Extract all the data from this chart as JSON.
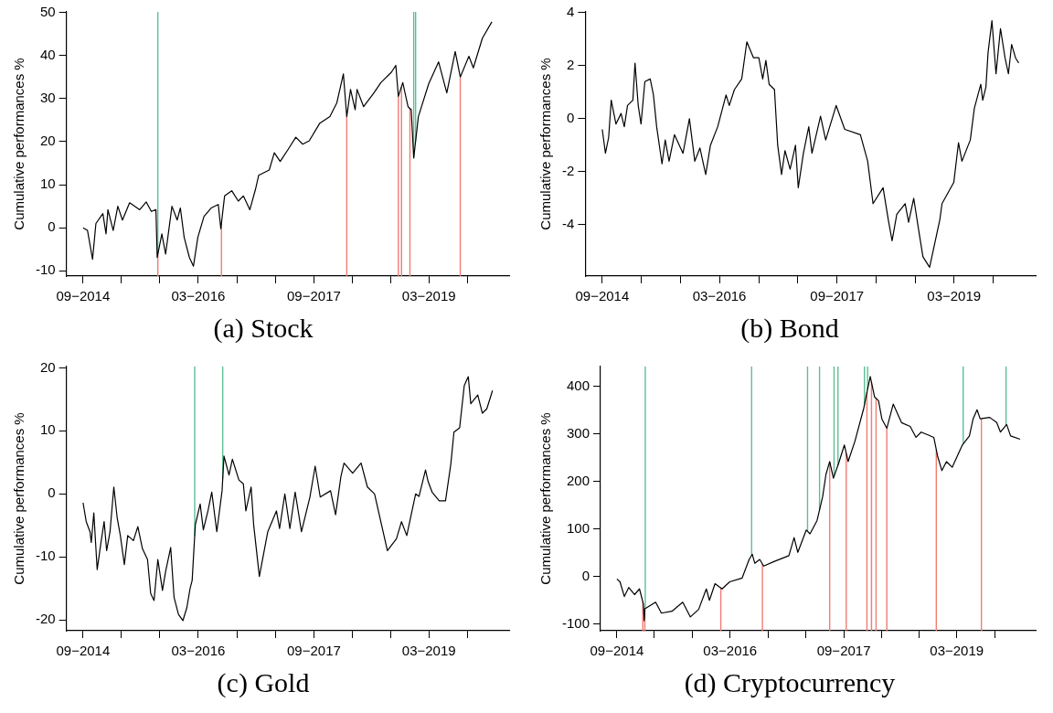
{
  "chart_data": [
    {
      "type": "line",
      "title": "(a) Stock",
      "ylabel": "Cumulative performances %",
      "marker": "none",
      "xlim": [
        "2014-06-14",
        "2020-03-16"
      ],
      "ylim": [
        -11.2,
        50.1
      ],
      "xticks": [
        {
          "value": "2014-09",
          "label": "09−2014"
        },
        {
          "value": "2015-03",
          "label": null
        },
        {
          "value": "2015-09",
          "label": null
        },
        {
          "value": "2016-03",
          "label": "03−2016"
        },
        {
          "value": "2016-09",
          "label": null
        },
        {
          "value": "2017-03",
          "label": null
        },
        {
          "value": "2017-09",
          "label": "09−2017"
        },
        {
          "value": "2018-03",
          "label": null
        },
        {
          "value": "2018-09",
          "label": null
        },
        {
          "value": "2019-03",
          "label": "03−2019"
        },
        {
          "value": "2019-09",
          "label": null
        }
      ],
      "yticks": [
        -10,
        0,
        10,
        20,
        30,
        40,
        50
      ],
      "x": [
        "2014-09-01",
        "2014-09-22",
        "2014-10-16",
        "2014-11-01",
        "2014-12-04",
        "2014-12-19",
        "2014-12-28",
        "2015-01-22",
        "2015-02-13",
        "2015-03-07",
        "2015-04-10",
        "2015-05-28",
        "2015-06-28",
        "2015-07-22",
        "2015-08-13",
        "2015-08-19",
        "2015-09-10",
        "2015-09-28",
        "2015-10-28",
        "2015-11-22",
        "2015-12-07",
        "2015-12-25",
        "2016-01-19",
        "2016-02-07",
        "2016-02-28",
        "2016-03-28",
        "2016-05-01",
        "2016-06-04",
        "2016-06-16",
        "2016-07-04",
        "2016-08-07",
        "2016-09-07",
        "2016-10-01",
        "2016-11-01",
        "2016-11-28",
        "2016-12-13",
        "2017-02-01",
        "2017-02-25",
        "2017-03-25",
        "2017-05-07",
        "2017-06-07",
        "2017-07-10",
        "2017-08-10",
        "2017-09-28",
        "2017-11-16",
        "2017-12-19",
        "2018-01-19",
        "2018-02-04",
        "2018-02-22",
        "2018-03-16",
        "2018-03-25",
        "2018-04-25",
        "2018-06-13",
        "2018-07-16",
        "2018-09-04",
        "2018-09-25",
        "2018-10-07",
        "2018-10-28",
        "2018-11-22",
        "2018-12-07",
        "2018-12-19",
        "2019-01-10",
        "2019-02-28",
        "2019-04-16",
        "2019-05-25",
        "2019-07-04",
        "2019-07-28",
        "2019-09-07",
        "2019-09-28",
        "2019-11-10",
        "2019-12-25"
      ],
      "series": [
        {
          "color": "#000000",
          "values": [
            0,
            -0.6,
            -7.3,
            1,
            3.3,
            -1.4,
            4.2,
            -0.6,
            5,
            1.8,
            5.8,
            4.2,
            6,
            3.8,
            4.2,
            -6.9,
            -1.4,
            -6.1,
            5,
            1.8,
            4.6,
            -2.2,
            -6.9,
            -8.9,
            -2.2,
            2.6,
            4.6,
            5.4,
            -0.2,
            7.4,
            8.6,
            6.2,
            7.4,
            4.2,
            9,
            12.2,
            13.4,
            17.4,
            15.4,
            18.6,
            21,
            19.4,
            20.2,
            24.2,
            25.8,
            29,
            35.7,
            25.8,
            32.1,
            27.4,
            32.1,
            28.1,
            31.3,
            33.7,
            36.1,
            37.7,
            30.5,
            33.7,
            28.1,
            27.4,
            16.2,
            25.8,
            33.4,
            38.5,
            31.3,
            40.9,
            35,
            39.8,
            37.1,
            44,
            47.8
          ]
        }
      ],
      "ref_lines": [
        {
          "axis": "x",
          "value": "2015-08-22",
          "color": "#5dbf95"
        },
        {
          "axis": "x",
          "value": "2018-12-19",
          "color": "#5dbf95"
        },
        {
          "axis": "x",
          "value": "2018-12-28",
          "color": "#5dbf95"
        },
        {
          "axis": "x",
          "value": "2015-08-22",
          "color": "#f17c74"
        },
        {
          "axis": "x",
          "value": "2016-06-19",
          "color": "#f17c74"
        },
        {
          "axis": "x",
          "value": "2018-02-04",
          "color": "#f17c74"
        },
        {
          "axis": "x",
          "value": "2018-10-07",
          "color": "#f17c74"
        },
        {
          "axis": "x",
          "value": "2018-10-22",
          "color": "#f17c74"
        },
        {
          "axis": "x",
          "value": "2018-12-01",
          "color": "#f17c74"
        },
        {
          "axis": "x",
          "value": "2019-07-28",
          "color": "#f17c74"
        }
      ]
    },
    {
      "type": "line",
      "title": "(b) Bond",
      "ylabel": "Cumulative performances %",
      "marker": "none",
      "xlim": [
        "2014-06-14",
        "2020-03-16"
      ],
      "ylim": [
        -5.93,
        4.03
      ],
      "xticks": [
        {
          "value": "2014-09",
          "label": "09−2014"
        },
        {
          "value": "2015-03",
          "label": null
        },
        {
          "value": "2015-09",
          "label": null
        },
        {
          "value": "2016-03",
          "label": "03−2016"
        },
        {
          "value": "2016-09",
          "label": null
        },
        {
          "value": "2017-03",
          "label": null
        },
        {
          "value": "2017-09",
          "label": "09−2017"
        },
        {
          "value": "2018-03",
          "label": null
        },
        {
          "value": "2018-09",
          "label": null
        },
        {
          "value": "2019-03",
          "label": "03−2019"
        },
        {
          "value": "2019-09",
          "label": null
        }
      ],
      "yticks": [
        -4,
        -2,
        0,
        2,
        4
      ],
      "x": [
        "2014-09-01",
        "2014-09-16",
        "2014-10-01",
        "2014-10-13",
        "2014-11-04",
        "2014-11-28",
        "2014-12-13",
        "2014-12-28",
        "2015-01-22",
        "2015-02-01",
        "2015-02-16",
        "2015-03-01",
        "2015-03-19",
        "2015-04-13",
        "2015-04-28",
        "2015-05-13",
        "2015-06-07",
        "2015-06-22",
        "2015-07-10",
        "2015-08-04",
        "2015-09-13",
        "2015-10-13",
        "2015-11-07",
        "2015-12-01",
        "2015-12-28",
        "2016-01-19",
        "2016-02-22",
        "2016-04-01",
        "2016-04-16",
        "2016-05-10",
        "2016-06-13",
        "2016-07-07",
        "2016-08-07",
        "2016-09-01",
        "2016-09-19",
        "2016-10-04",
        "2016-10-19",
        "2016-11-13",
        "2016-11-28",
        "2016-12-16",
        "2017-01-01",
        "2017-01-25",
        "2017-02-19",
        "2017-03-04",
        "2017-03-28",
        "2017-04-22",
        "2017-05-07",
        "2017-06-16",
        "2017-07-10",
        "2017-08-28",
        "2017-10-07",
        "2017-12-19",
        "2018-01-22",
        "2018-02-16",
        "2018-04-04",
        "2018-04-28",
        "2018-05-16",
        "2018-06-07",
        "2018-07-16",
        "2018-08-01",
        "2018-08-25",
        "2018-09-19",
        "2018-10-07",
        "2018-11-07",
        "2018-12-01",
        "2018-12-25",
        "2019-01-04",
        "2019-02-28",
        "2019-03-22",
        "2019-04-07",
        "2019-05-16",
        "2019-06-04",
        "2019-07-04",
        "2019-07-13",
        "2019-07-28",
        "2019-08-07",
        "2019-08-25",
        "2019-09-13",
        "2019-10-04",
        "2019-10-25",
        "2019-11-10",
        "2019-11-25",
        "2019-12-13",
        "2019-12-28"
      ],
      "series": [
        {
          "color": "#000000",
          "values": [
            -0.4,
            -1.3,
            -0.7,
            0.7,
            -0.2,
            0.2,
            -0.3,
            0.5,
            0.7,
            2.1,
            0.5,
            -0.2,
            1.4,
            1.5,
            0.9,
            -0.3,
            -1.7,
            -0.8,
            -1.6,
            -0.6,
            -1.3,
            0,
            -1.6,
            -1.1,
            -2.1,
            -1,
            -0.3,
            0.9,
            0.5,
            1.1,
            1.5,
            2.9,
            2.3,
            2.3,
            1.5,
            2.2,
            1.3,
            1.1,
            -1,
            -2.1,
            -1.2,
            -1.9,
            -1,
            -2.6,
            -1.3,
            -0.3,
            -1.3,
            0.1,
            -0.8,
            0.5,
            -0.4,
            -0.6,
            -1.6,
            -3.2,
            -2.6,
            -3.8,
            -4.6,
            -3.6,
            -3.2,
            -3.9,
            -3,
            -4.3,
            -5.2,
            -5.6,
            -4.7,
            -3.8,
            -3.2,
            -2.4,
            -0.9,
            -1.6,
            -0.8,
            0.4,
            1.3,
            0.7,
            1.2,
            2.5,
            3.7,
            1.7,
            3.4,
            2.3,
            1.7,
            2.8,
            2.3,
            2.1
          ]
        }
      ]
    },
    {
      "type": "line",
      "title": "(c) Gold",
      "ylabel": "Cumulative performances %",
      "marker": "none",
      "xlim": [
        "2014-06-14",
        "2020-03-16"
      ],
      "ylim": [
        -21.7,
        20.2
      ],
      "xticks": [
        {
          "value": "2014-09",
          "label": "09−2014"
        },
        {
          "value": "2015-03",
          "label": null
        },
        {
          "value": "2015-09",
          "label": null
        },
        {
          "value": "2016-03",
          "label": "03−2016"
        },
        {
          "value": "2016-09",
          "label": null
        },
        {
          "value": "2017-03",
          "label": null
        },
        {
          "value": "2017-09",
          "label": "09−2017"
        },
        {
          "value": "2018-03",
          "label": null
        },
        {
          "value": "2018-09",
          "label": null
        },
        {
          "value": "2019-03",
          "label": "03−2019"
        },
        {
          "value": "2019-09",
          "label": null
        }
      ],
      "yticks": [
        -20,
        -10,
        0,
        10,
        20
      ],
      "x": [
        "2014-09-01",
        "2014-09-16",
        "2014-10-04",
        "2014-10-10",
        "2014-10-22",
        "2014-11-07",
        "2014-11-25",
        "2014-12-10",
        "2014-12-22",
        "2015-01-07",
        "2015-01-25",
        "2015-02-10",
        "2015-02-25",
        "2015-03-16",
        "2015-04-01",
        "2015-04-28",
        "2015-05-19",
        "2015-06-10",
        "2015-07-04",
        "2015-07-19",
        "2015-08-04",
        "2015-08-22",
        "2015-09-13",
        "2015-09-28",
        "2015-10-22",
        "2015-11-07",
        "2015-11-28",
        "2015-12-19",
        "2016-01-07",
        "2016-01-22",
        "2016-02-01",
        "2016-02-16",
        "2016-03-10",
        "2016-03-25",
        "2016-04-16",
        "2016-05-04",
        "2016-05-28",
        "2016-06-22",
        "2016-07-01",
        "2016-07-25",
        "2016-08-10",
        "2016-09-10",
        "2016-10-01",
        "2016-10-13",
        "2016-11-07",
        "2016-11-19",
        "2016-12-16",
        "2017-01-25",
        "2017-03-07",
        "2017-03-22",
        "2017-04-16",
        "2017-05-10",
        "2017-06-04",
        "2017-07-04",
        "2017-08-13",
        "2017-09-07",
        "2017-10-01",
        "2017-11-19",
        "2017-12-13",
        "2018-01-07",
        "2018-01-22",
        "2018-03-04",
        "2018-04-13",
        "2018-05-13",
        "2018-06-16",
        "2018-08-16",
        "2018-09-28",
        "2018-10-22",
        "2018-11-16",
        "2018-12-28",
        "2019-01-13",
        "2019-02-13",
        "2019-02-25",
        "2019-03-16",
        "2019-04-19",
        "2019-05-19",
        "2019-06-13",
        "2019-06-28",
        "2019-07-25",
        "2019-08-16",
        "2019-09-04",
        "2019-09-16",
        "2019-10-19",
        "2019-11-10",
        "2019-12-01",
        "2019-12-28"
      ],
      "series": [
        {
          "color": "#000000",
          "values": [
            -1.4,
            -4.4,
            -6,
            -7.7,
            -3,
            -12,
            -7.7,
            -4.4,
            -9,
            -6,
            1.1,
            -3.8,
            -6.6,
            -11.2,
            -6.6,
            -7.4,
            -5.2,
            -8.7,
            -10.4,
            -15.8,
            -16.9,
            -10.4,
            -15.3,
            -12.3,
            -8.5,
            -16.4,
            -19.1,
            -20.1,
            -18,
            -15,
            -13.7,
            -4.9,
            -1.6,
            -5.7,
            -2.7,
            0.3,
            -6,
            0.5,
            6,
            3,
            5.5,
            2.2,
            1.6,
            -2.7,
            1.1,
            -4.9,
            -13.1,
            -6,
            -2.7,
            -5.5,
            0,
            -5.5,
            0.3,
            -6,
            -0.5,
            4.4,
            -0.5,
            0.5,
            -3.3,
            2.7,
            4.9,
            3.3,
            4.9,
            1.1,
            0,
            -9,
            -7.1,
            -4.4,
            -6.6,
            0,
            -0.4,
            3.8,
            2,
            0.3,
            -1.1,
            -1.1,
            4.7,
            9.8,
            10.5,
            17.2,
            18.6,
            14.3,
            15.7,
            12.8,
            13.5,
            16.4
          ]
        }
      ],
      "ref_lines": [
        {
          "axis": "x",
          "value": "2016-02-13",
          "color": "#5dbf95"
        },
        {
          "axis": "x",
          "value": "2016-06-25",
          "color": "#5dbf95"
        }
      ]
    },
    {
      "type": "line",
      "title": "(d) Cryptocurrency",
      "ylabel": "Cumulative performances %",
      "marker": "none",
      "xlim": [
        "2014-06-14",
        "2020-03-16"
      ],
      "ylim": [
        -114,
        442
      ],
      "xticks": [
        {
          "value": "2014-09",
          "label": "09−2014"
        },
        {
          "value": "2015-03",
          "label": null
        },
        {
          "value": "2015-09",
          "label": null
        },
        {
          "value": "2016-03",
          "label": "03−2016"
        },
        {
          "value": "2016-09",
          "label": null
        },
        {
          "value": "2017-03",
          "label": null
        },
        {
          "value": "2017-09",
          "label": "09−2017"
        },
        {
          "value": "2018-03",
          "label": null
        },
        {
          "value": "2018-09",
          "label": null
        },
        {
          "value": "2019-03",
          "label": "03−2019"
        },
        {
          "value": "2019-09",
          "label": null
        }
      ],
      "yticks": [
        -100,
        0,
        100,
        200,
        300,
        400
      ],
      "x": [
        "2014-09-01",
        "2014-09-16",
        "2014-10-07",
        "2014-10-28",
        "2014-11-25",
        "2014-12-19",
        "2015-01-07",
        "2015-01-11",
        "2015-01-14",
        "2015-01-25",
        "2015-03-07",
        "2015-04-04",
        "2015-05-25",
        "2015-07-16",
        "2015-08-22",
        "2015-10-01",
        "2015-11-07",
        "2015-11-22",
        "2015-12-19",
        "2016-01-22",
        "2016-02-28",
        "2016-04-28",
        "2016-06-01",
        "2016-06-16",
        "2016-06-28",
        "2016-07-22",
        "2016-08-10",
        "2016-10-01",
        "2016-12-10",
        "2017-01-04",
        "2017-01-22",
        "2017-03-04",
        "2017-03-22",
        "2017-04-25",
        "2017-05-22",
        "2017-06-07",
        "2017-06-25",
        "2017-07-13",
        "2017-08-07",
        "2017-09-04",
        "2017-09-22",
        "2017-10-25",
        "2017-12-07",
        "2017-12-25",
        "2018-01-07",
        "2018-01-28",
        "2018-02-16",
        "2018-03-04",
        "2018-03-28",
        "2018-04-28",
        "2018-06-07",
        "2018-07-19",
        "2018-08-16",
        "2018-09-10",
        "2018-11-10",
        "2018-11-28",
        "2018-12-19",
        "2019-01-10",
        "2019-02-07",
        "2019-03-28",
        "2019-05-01",
        "2019-05-19",
        "2019-06-07",
        "2019-06-22",
        "2019-08-07",
        "2019-09-10",
        "2019-09-28",
        "2019-10-28",
        "2019-11-16",
        "2020-01-01"
      ],
      "series": [
        {
          "color": "#000000",
          "values": [
            -5,
            -11,
            -42,
            -23,
            -38,
            -26,
            -58,
            -93,
            -68,
            -65,
            -54,
            -77,
            -73,
            -54,
            -85,
            -69,
            -26,
            -50,
            -15,
            -26,
            -11,
            -3,
            36,
            47,
            28,
            36,
            22,
            32,
            44,
            82,
            51,
            98,
            90,
            118,
            168,
            215,
            242,
            207,
            238,
            277,
            242,
            285,
            355,
            394,
            421,
            378,
            370,
            332,
            312,
            363,
            324,
            316,
            293,
            304,
            293,
            254,
            223,
            242,
            230,
            277,
            296,
            332,
            351,
            332,
            335,
            324,
            304,
            320,
            296,
            289
          ]
        }
      ],
      "ref_lines": [
        {
          "axis": "x",
          "value": "2015-01-16",
          "color": "#5dbf95"
        },
        {
          "axis": "x",
          "value": "2016-06-13",
          "color": "#5dbf95"
        },
        {
          "axis": "x",
          "value": "2017-03-10",
          "color": "#5dbf95"
        },
        {
          "axis": "x",
          "value": "2017-05-07",
          "color": "#5dbf95"
        },
        {
          "axis": "x",
          "value": "2017-07-16",
          "color": "#5dbf95"
        },
        {
          "axis": "x",
          "value": "2017-08-04",
          "color": "#5dbf95"
        },
        {
          "axis": "x",
          "value": "2017-12-10",
          "color": "#5dbf95"
        },
        {
          "axis": "x",
          "value": "2017-12-25",
          "color": "#5dbf95"
        },
        {
          "axis": "x",
          "value": "2019-04-01",
          "color": "#5dbf95"
        },
        {
          "axis": "x",
          "value": "2019-10-25",
          "color": "#5dbf95"
        },
        {
          "axis": "x",
          "value": "2015-01-04",
          "color": "#f17c74"
        },
        {
          "axis": "x",
          "value": "2015-01-14",
          "color": "#f17c74"
        },
        {
          "axis": "x",
          "value": "2016-01-16",
          "color": "#f17c74"
        },
        {
          "axis": "x",
          "value": "2016-08-04",
          "color": "#f17c74"
        },
        {
          "axis": "x",
          "value": "2017-06-25",
          "color": "#f17c74"
        },
        {
          "axis": "x",
          "value": "2017-09-13",
          "color": "#f17c74"
        },
        {
          "axis": "x",
          "value": "2017-12-22",
          "color": "#f17c74"
        },
        {
          "axis": "x",
          "value": "2018-01-13",
          "color": "#f17c74"
        },
        {
          "axis": "x",
          "value": "2018-02-04",
          "color": "#f17c74"
        },
        {
          "axis": "x",
          "value": "2018-03-28",
          "color": "#f17c74"
        },
        {
          "axis": "x",
          "value": "2018-11-22",
          "color": "#f17c74"
        },
        {
          "axis": "x",
          "value": "2019-06-28",
          "color": "#f17c74"
        }
      ]
    }
  ]
}
